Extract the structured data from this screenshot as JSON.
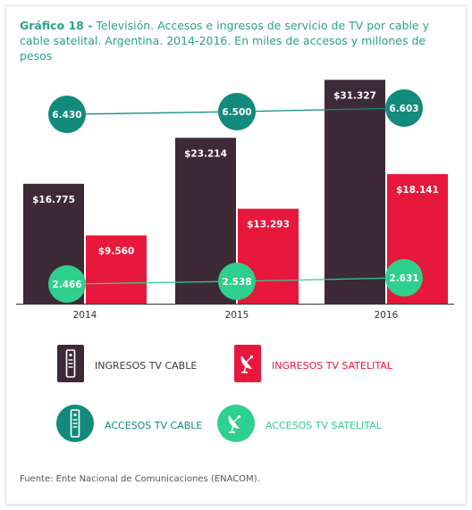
{
  "title": {
    "prefix": "Gráfico 18 -",
    "text": " Televisión. Accesos e ingresos de servicio de TV por cable y cable satelital. Argentina. 2014-2016. En miles de accesos y millones de pesos"
  },
  "chart_data": {
    "type": "bar",
    "categories": [
      "2014",
      "2015",
      "2016"
    ],
    "series": [
      {
        "name": "INGRESOS TV CABLE",
        "kind": "bar",
        "values": [
          16775,
          23214,
          31327
        ],
        "labels": [
          "$16.775",
          "$23.214",
          "$31.327"
        ],
        "color": "#3d2a36"
      },
      {
        "name": "INGRESOS TV SATELITAL",
        "kind": "bar",
        "values": [
          9560,
          13293,
          18141
        ],
        "labels": [
          "$9.560",
          "$13.293",
          "$18.141"
        ],
        "color": "#e8173c"
      },
      {
        "name": "ACCESOS TV CABLE",
        "kind": "line",
        "values": [
          6430,
          6500,
          6603
        ],
        "labels": [
          "6.430",
          "6.500",
          "6.603"
        ],
        "color": "#128a7c"
      },
      {
        "name": "ACCESOS TV SATELITAL",
        "kind": "line",
        "values": [
          2466,
          2538,
          2631
        ],
        "labels": [
          "2.466",
          "2.538",
          "2.631"
        ],
        "color": "#2fcf8e"
      }
    ],
    "ylim": [
      0,
      32500
    ]
  },
  "legend": [
    {
      "label": "INGRESOS TV CABLE",
      "icon": "cable-box-icon",
      "shape": "square",
      "color": "#3d2a36",
      "text_color": "#3a3a3a"
    },
    {
      "label": "INGRESOS TV SATELITAL",
      "icon": "satellite-dish-icon",
      "shape": "square",
      "color": "#e8173c",
      "text_color": "#e8173c"
    },
    {
      "label": "ACCESOS TV CABLE",
      "icon": "cable-box-icon",
      "shape": "circle",
      "color": "#128a7c",
      "text_color": "#128a7c"
    },
    {
      "label": "ACCESOS TV SATELITAL",
      "icon": "satellite-dish-icon",
      "shape": "circle",
      "color": "#2fcf8e",
      "text_color": "#2fcf8e"
    }
  ],
  "source": "Fuente: Ente Nacional de Comunicaciones (ENACOM)."
}
